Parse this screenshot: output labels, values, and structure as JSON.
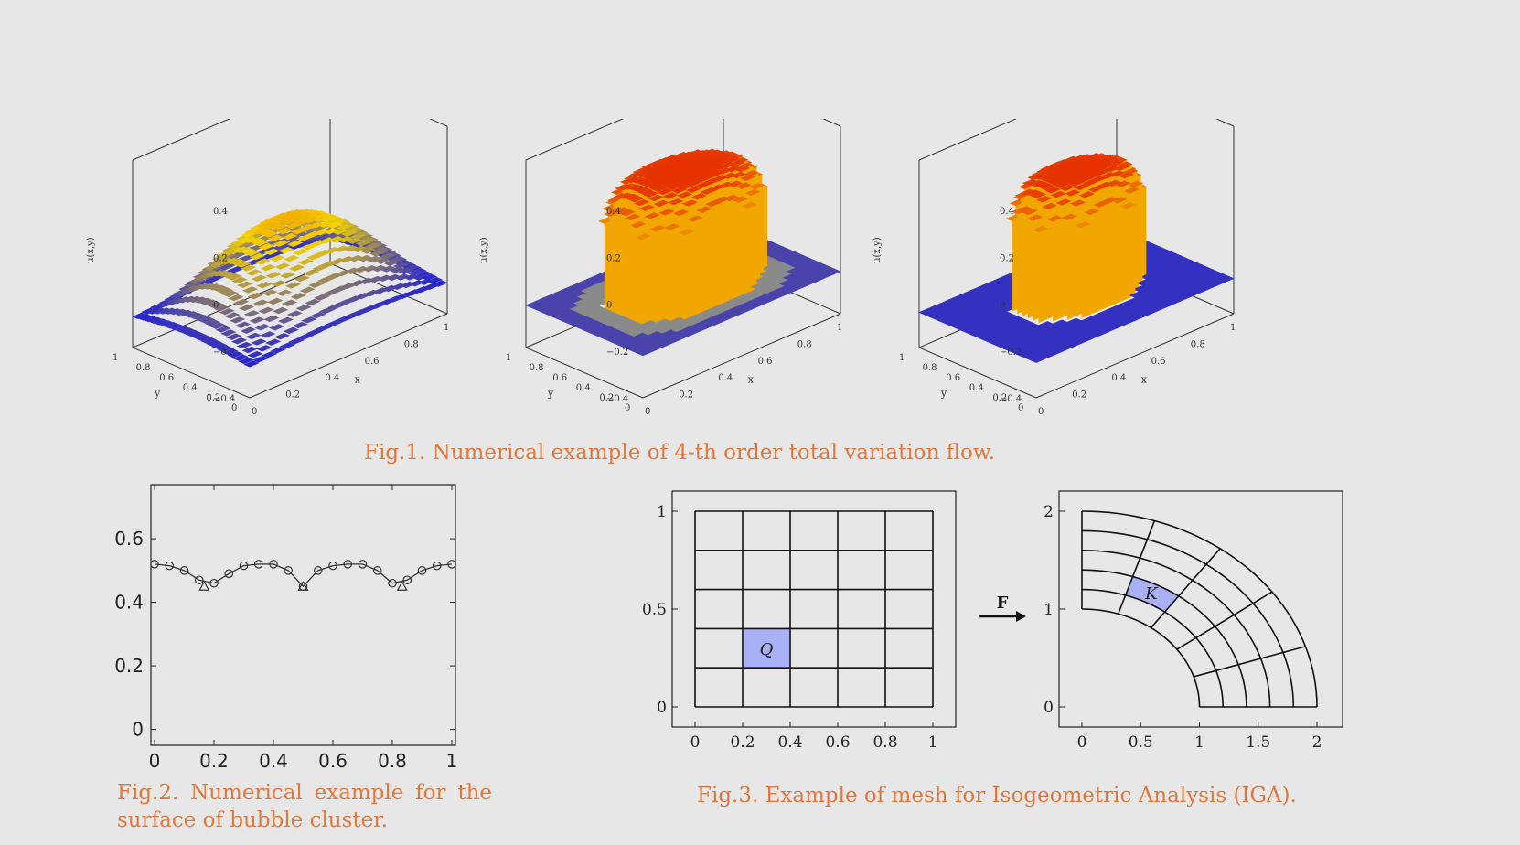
{
  "fig1": {
    "caption": "Fig.1. Numerical example of 4-th order total variation flow.",
    "plots": [
      {
        "zlabel": "u(x,y)",
        "xlabel": "x",
        "ylabel": "y",
        "zticks": [
          "0.4",
          "0.2",
          "0",
          "−0.2",
          "−0.4"
        ],
        "xticks": [
          "0",
          "0.2",
          "0.4",
          "0.6",
          "0.8",
          "1"
        ],
        "yticks": [
          "0",
          "0.2",
          "0.4",
          "0.6",
          "0.8",
          "1"
        ]
      },
      {
        "zlabel": "u(x,y)",
        "xlabel": "x",
        "ylabel": "y",
        "zticks": [
          "0.4",
          "0.2",
          "0",
          "−0.2",
          "−0.4"
        ],
        "xticks": [
          "0",
          "0.2",
          "0.4",
          "0.6",
          "0.8",
          "1"
        ],
        "yticks": [
          "0",
          "0.2",
          "0.4",
          "0.6",
          "0.8",
          "1"
        ]
      },
      {
        "zlabel": "u(x,y)",
        "xlabel": "x",
        "ylabel": "y",
        "zticks": [
          "0.4",
          "0.2",
          "0",
          "−0.2",
          "−0.4"
        ],
        "xticks": [
          "0",
          "0.2",
          "0.4",
          "0.6",
          "0.8",
          "1"
        ],
        "yticks": [
          "0",
          "0.2",
          "0.4",
          "0.6",
          "0.8",
          "1"
        ]
      }
    ],
    "colors": {
      "high": "#e31a00",
      "mid": "#f5d400",
      "low": "#1f1fd6",
      "flat": "#8a8a8a"
    }
  },
  "fig2": {
    "caption_line1": "Fig.2. Numerical example for the",
    "caption_line2": "surface of bubble cluster.",
    "xticks": [
      "0",
      "0.2",
      "0.4",
      "0.6",
      "0.8",
      "1"
    ],
    "yticks": [
      "0",
      "0.2",
      "0.4",
      "0.6"
    ]
  },
  "fig3": {
    "caption": "Fig.3. Example of mesh for Isogeometric Analysis (IGA).",
    "left": {
      "xticks": [
        "0",
        "0.2",
        "0.4",
        "0.6",
        "0.8",
        "1"
      ],
      "yticks": [
        "0",
        "0.5",
        "1"
      ],
      "cell_label": "Q"
    },
    "arrow_label": "F",
    "right": {
      "xticks": [
        "0",
        "0.5",
        "1",
        "1.5",
        "2"
      ],
      "yticks": [
        "0",
        "1",
        "2"
      ],
      "cell_label": "K"
    },
    "highlight_color": "#aab0f5"
  },
  "chart_data": [
    {
      "type": "line",
      "title": "",
      "xlabel": "",
      "ylabel": "",
      "xlim": [
        0,
        1
      ],
      "ylim": [
        -0.05,
        0.77
      ],
      "series": [
        {
          "marker": "circle",
          "x": [
            0,
            0.05,
            0.1,
            0.15,
            0.2,
            0.25,
            0.3,
            0.35,
            0.4,
            0.45,
            0.5,
            0.55,
            0.6,
            0.65,
            0.7,
            0.75,
            0.8,
            0.85,
            0.9,
            0.95,
            1.0
          ],
          "values": [
            0.52,
            0.515,
            0.5,
            0.47,
            0.46,
            0.49,
            0.515,
            0.52,
            0.52,
            0.5,
            0.45,
            0.5,
            0.515,
            0.52,
            0.52,
            0.5,
            0.46,
            0.47,
            0.5,
            0.515,
            0.52
          ]
        },
        {
          "marker": "triangle",
          "x": [
            0.167,
            0.5,
            0.833
          ],
          "values": [
            0.45,
            0.45,
            0.45
          ]
        }
      ]
    }
  ]
}
